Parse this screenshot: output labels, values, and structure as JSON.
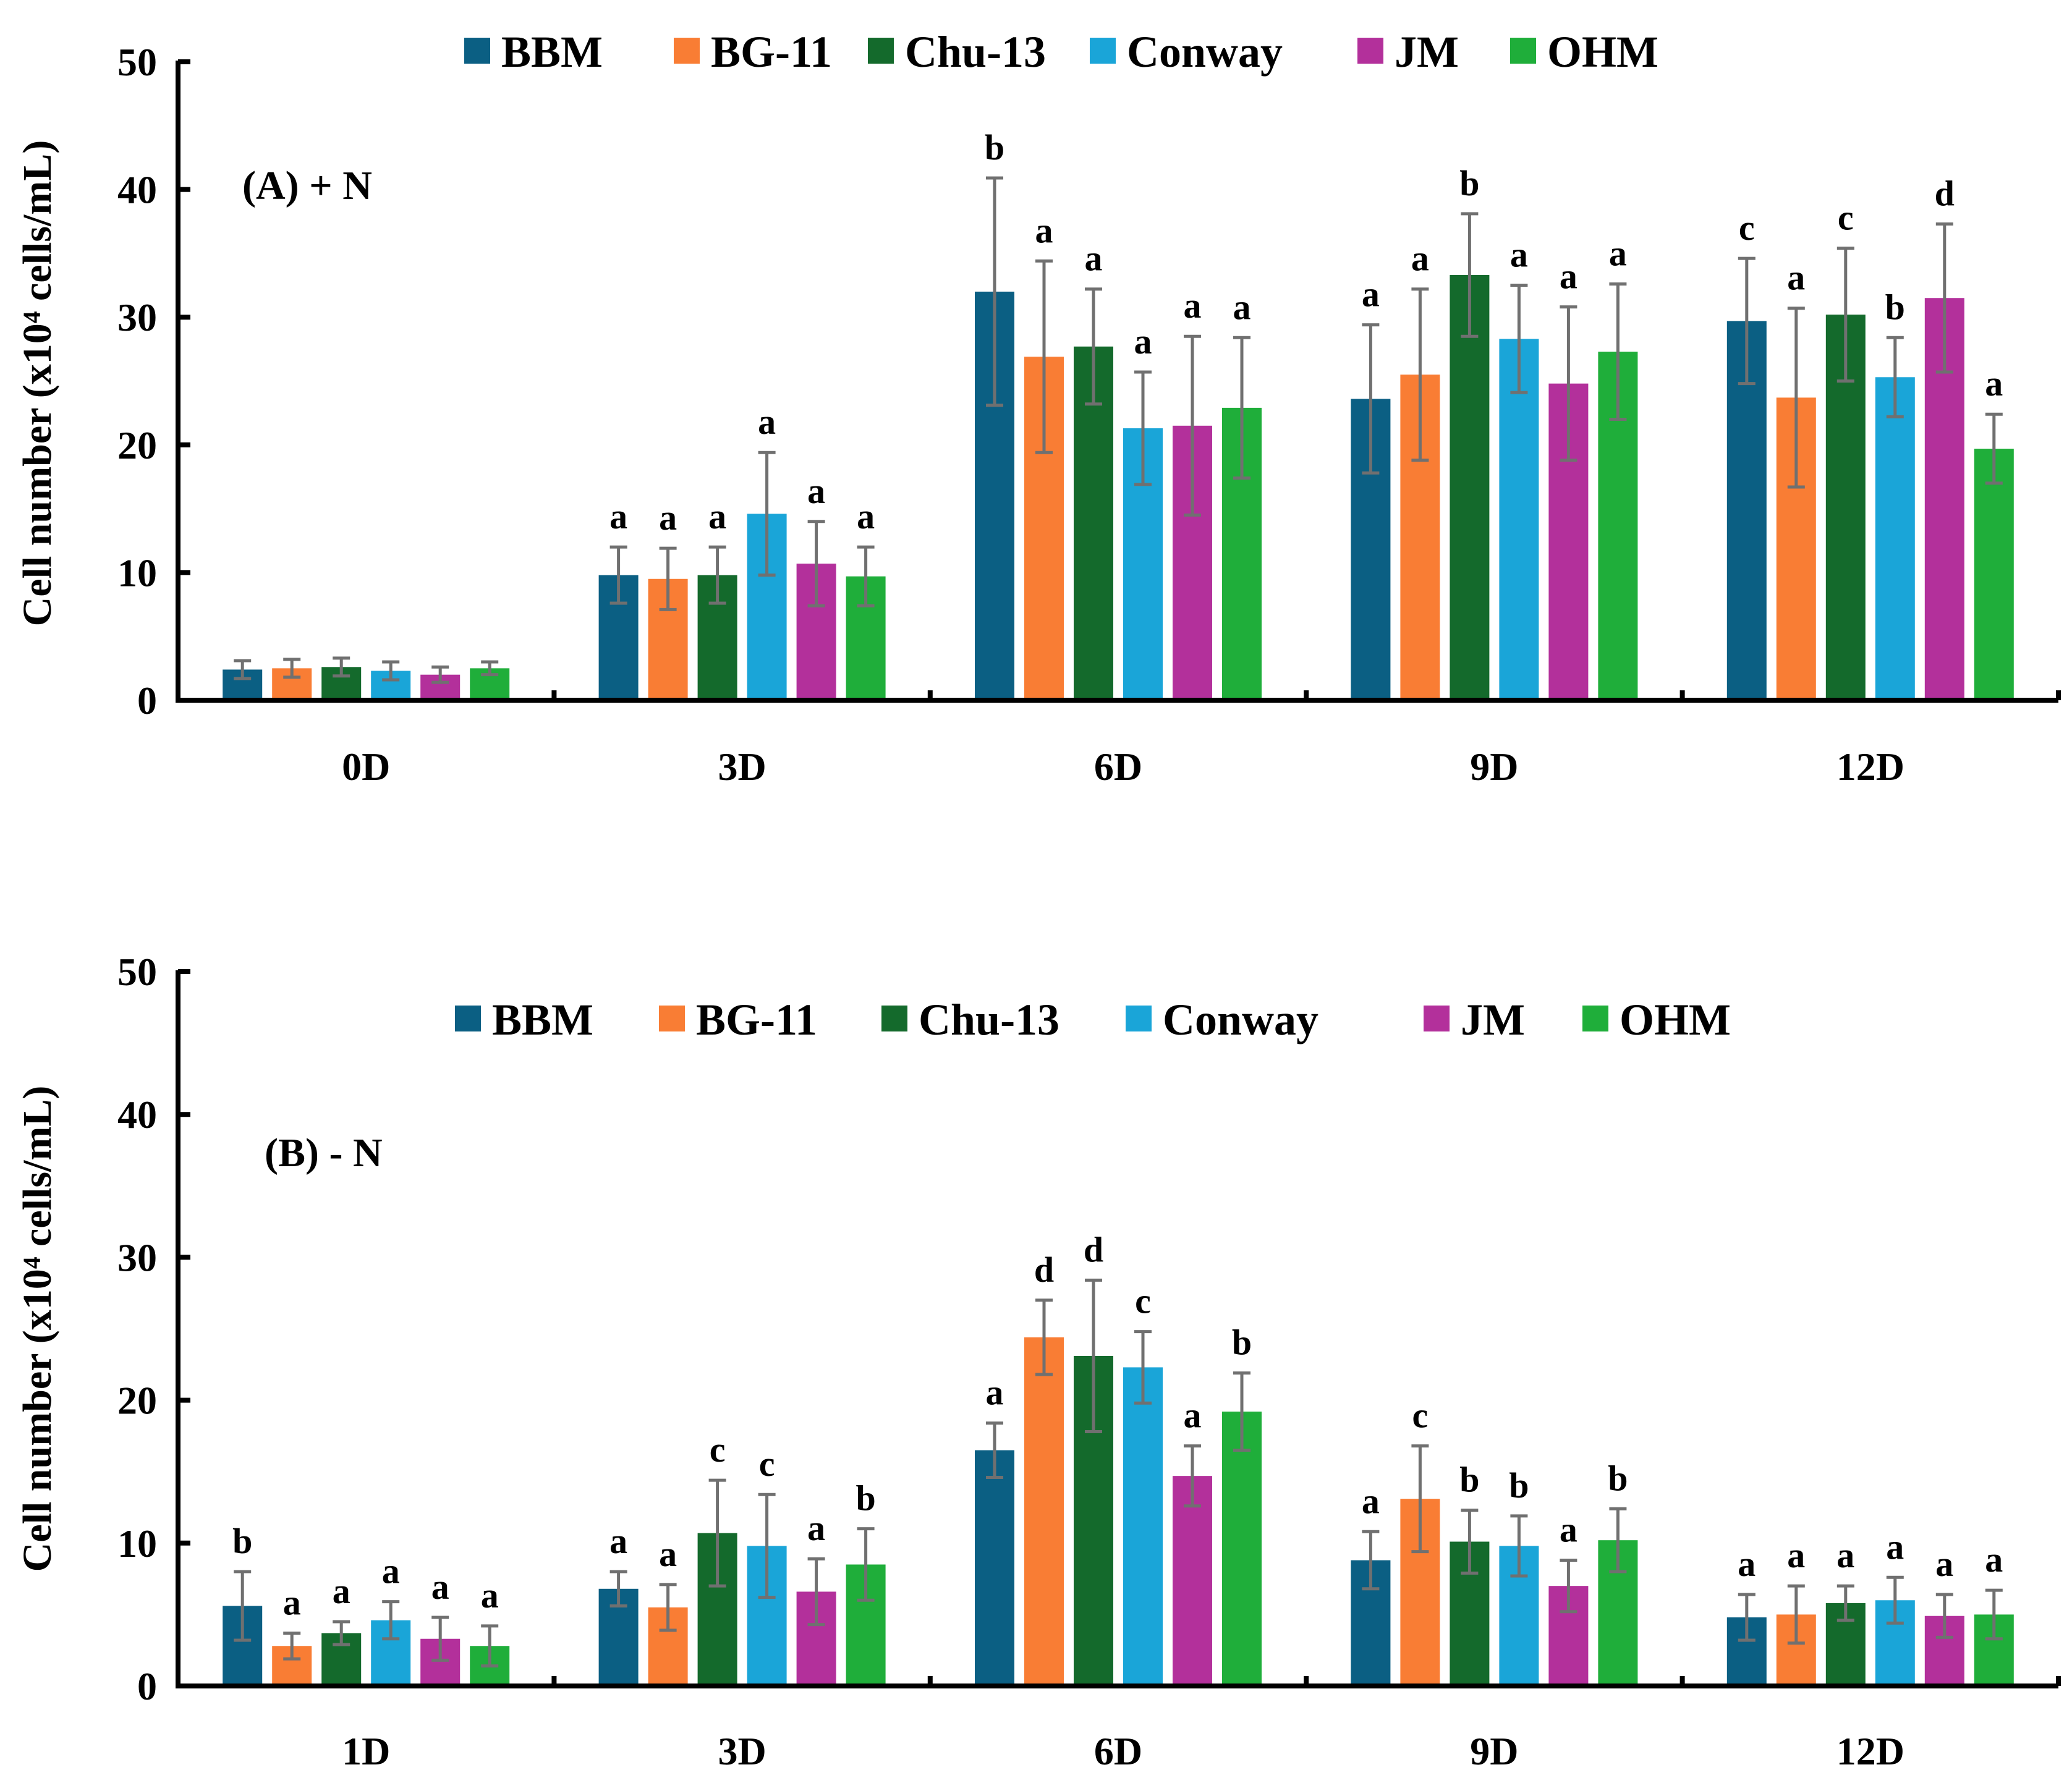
{
  "colors": {
    "BBM": "#0b5f83",
    "BG-11": "#f97d34",
    "Chu-13": "#146a2c",
    "Conway": "#1aa5d8",
    "JM": "#b3309b",
    "OHM": "#1fae3a",
    "error_bar": "#707070",
    "axis": "#000000"
  },
  "chart_data": [
    {
      "type": "bar",
      "panel_label": "(A) + N",
      "ylabel": "Cell number (x10⁴ cells/mL)",
      "ylim": [
        0,
        50
      ],
      "yticks": [
        "0",
        "10",
        "20",
        "30",
        "40",
        "50"
      ],
      "categories": [
        "0D",
        "3D",
        "6D",
        "9D",
        "12D"
      ],
      "legend_position": "top",
      "series": [
        {
          "name": "BBM",
          "values": [
            2.4,
            9.8,
            32.0,
            23.6,
            29.7
          ],
          "errors": [
            0.7,
            2.2,
            8.9,
            5.8,
            4.9
          ],
          "labels": [
            "",
            "a",
            "b",
            "a",
            "c"
          ]
        },
        {
          "name": "BG-11",
          "values": [
            2.5,
            9.5,
            26.9,
            25.5,
            23.7
          ],
          "errors": [
            0.7,
            2.4,
            7.5,
            6.7,
            7.0
          ],
          "labels": [
            "",
            "a",
            "a",
            "a",
            "a"
          ]
        },
        {
          "name": "Chu-13",
          "values": [
            2.6,
            9.8,
            27.7,
            33.3,
            30.2
          ],
          "errors": [
            0.7,
            2.2,
            4.5,
            4.8,
            5.2
          ],
          "labels": [
            "",
            "a",
            "a",
            "b",
            "c"
          ]
        },
        {
          "name": "Conway",
          "values": [
            2.3,
            14.6,
            21.3,
            28.3,
            25.3
          ],
          "errors": [
            0.7,
            4.8,
            4.4,
            4.2,
            3.1
          ],
          "labels": [
            "",
            "a",
            "a",
            "a",
            "b"
          ]
        },
        {
          "name": "JM",
          "values": [
            2.0,
            10.7,
            21.5,
            24.8,
            31.5
          ],
          "errors": [
            0.6,
            3.3,
            7.0,
            6.0,
            5.8
          ],
          "labels": [
            "",
            "a",
            "a",
            "a",
            "d"
          ]
        },
        {
          "name": "OHM",
          "values": [
            2.5,
            9.7,
            22.9,
            27.3,
            19.7
          ],
          "errors": [
            0.5,
            2.3,
            5.5,
            5.3,
            2.7
          ],
          "labels": [
            "",
            "a",
            "a",
            "a",
            "a"
          ]
        }
      ]
    },
    {
      "type": "bar",
      "panel_label": "(B) - N",
      "ylabel": "Cell number (x10⁴ cells/mL)",
      "ylim": [
        0,
        50
      ],
      "yticks": [
        "0",
        "10",
        "20",
        "30",
        "40",
        "50"
      ],
      "categories": [
        "1D",
        "3D",
        "6D",
        "9D",
        "12D"
      ],
      "legend_position": "top",
      "series": [
        {
          "name": "BBM",
          "values": [
            5.6,
            6.8,
            16.5,
            8.8,
            4.8
          ],
          "errors": [
            2.4,
            1.2,
            1.9,
            2.0,
            1.6
          ],
          "labels": [
            "b",
            "a",
            "a",
            "a",
            "a"
          ]
        },
        {
          "name": "BG-11",
          "values": [
            2.8,
            5.5,
            24.4,
            13.1,
            5.0
          ],
          "errors": [
            0.9,
            1.6,
            2.6,
            3.7,
            2.0
          ],
          "labels": [
            "a",
            "a",
            "d",
            "c",
            "a"
          ]
        },
        {
          "name": "Chu-13",
          "values": [
            3.7,
            10.7,
            23.1,
            10.1,
            5.8
          ],
          "errors": [
            0.8,
            3.7,
            5.3,
            2.2,
            1.2
          ],
          "labels": [
            "a",
            "c",
            "d",
            "b",
            "a"
          ]
        },
        {
          "name": "Conway",
          "values": [
            4.6,
            9.8,
            22.3,
            9.8,
            6.0
          ],
          "errors": [
            1.3,
            3.6,
            2.5,
            2.1,
            1.6
          ],
          "labels": [
            "a",
            "c",
            "c",
            "b",
            "a"
          ]
        },
        {
          "name": "JM",
          "values": [
            3.3,
            6.6,
            14.7,
            7.0,
            4.9
          ],
          "errors": [
            1.5,
            2.3,
            2.1,
            1.8,
            1.5
          ],
          "labels": [
            "a",
            "a",
            "a",
            "a",
            "a"
          ]
        },
        {
          "name": "OHM",
          "values": [
            2.8,
            8.5,
            19.2,
            10.2,
            5.0
          ],
          "errors": [
            1.4,
            2.5,
            2.7,
            2.2,
            1.7
          ],
          "labels": [
            "a",
            "b",
            "b",
            "b",
            "a"
          ]
        }
      ]
    }
  ]
}
